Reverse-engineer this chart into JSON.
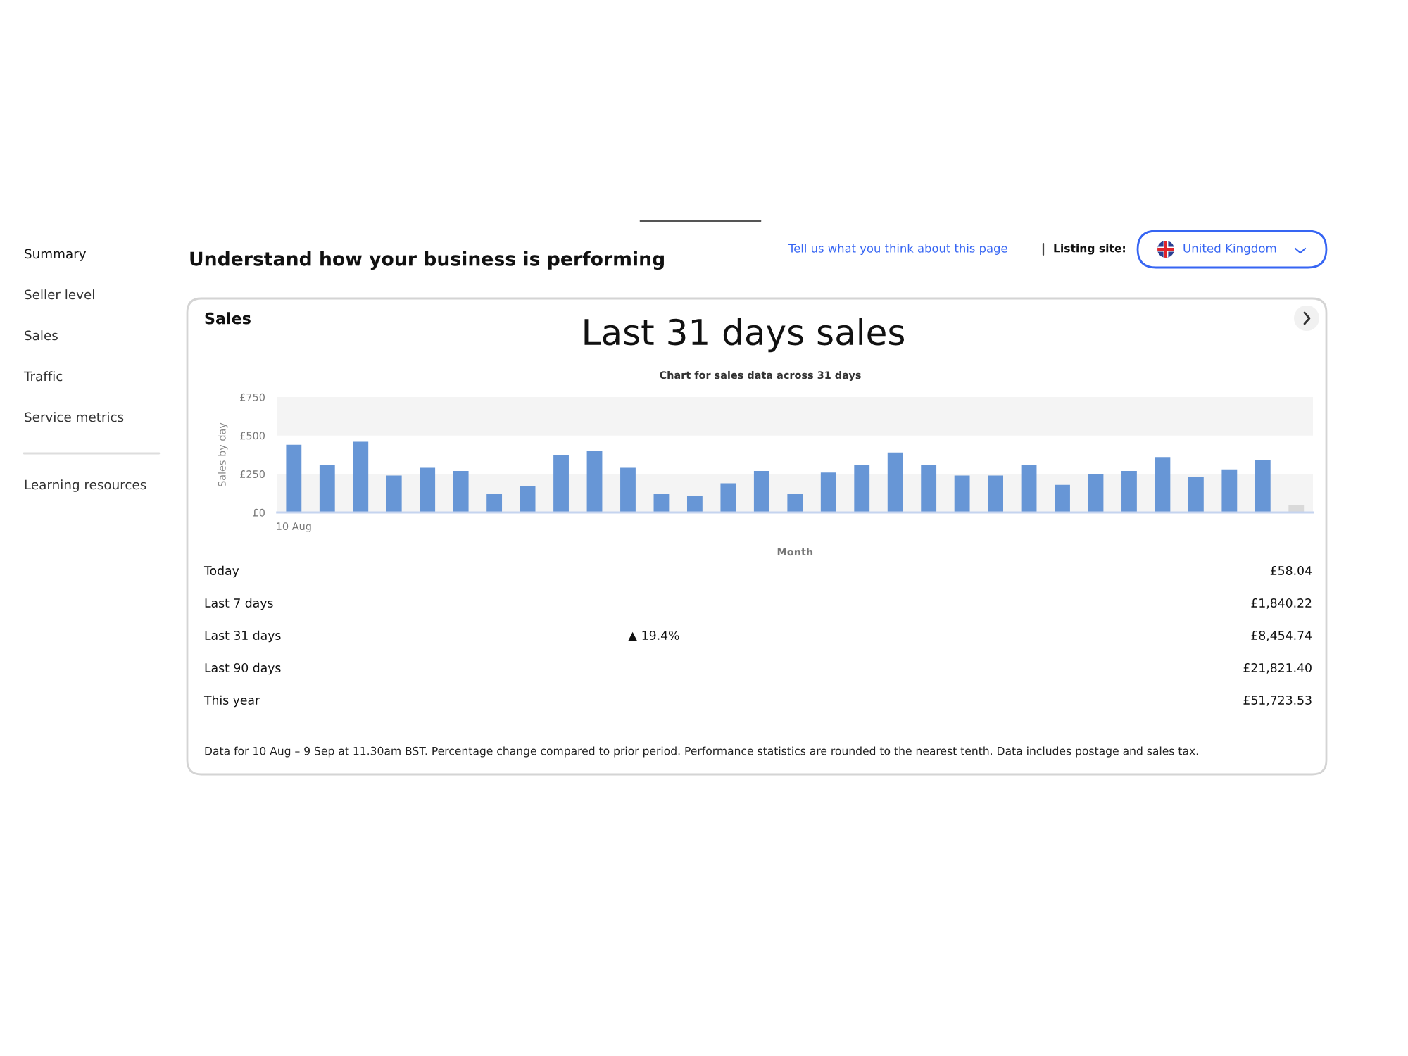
{
  "chart_data": {
    "type": "bar",
    "title": "Last 31 days sales",
    "subtitle": "Chart for sales data across 31 days",
    "xlabel": "Month",
    "ylabel": "Sales by day",
    "categories": [
      "10 Aug",
      null,
      null,
      null,
      null,
      null,
      null,
      null,
      null,
      null,
      null,
      null,
      null,
      null,
      null,
      null,
      null,
      null,
      null,
      null,
      null,
      null,
      null,
      null,
      null,
      null,
      null,
      null,
      null,
      null,
      null
    ],
    "values": [
      440,
      310,
      460,
      240,
      290,
      270,
      120,
      170,
      370,
      400,
      290,
      120,
      110,
      190,
      270,
      120,
      260,
      310,
      390,
      310,
      240,
      240,
      310,
      180,
      250,
      270,
      360,
      230,
      280,
      340,
      50
    ],
    "colors": [
      "#6796d6",
      "#6796d6",
      "#6796d6",
      "#6796d6",
      "#6796d6",
      "#6796d6",
      "#6796d6",
      "#6796d6",
      "#6796d6",
      "#6796d6",
      "#6796d6",
      "#6796d6",
      "#6796d6",
      "#6796d6",
      "#6796d6",
      "#6796d6",
      "#6796d6",
      "#6796d6",
      "#6796d6",
      "#6796d6",
      "#6796d6",
      "#6796d6",
      "#6796d6",
      "#6796d6",
      "#6796d6",
      "#6796d6",
      "#6796d6",
      "#6796d6",
      "#6796d6",
      "#6796d6",
      "#d9d9d9"
    ],
    "ylim": [
      0,
      750
    ],
    "yticks": [
      {
        "value": 0,
        "label": "£0"
      },
      {
        "value": 250,
        "label": "£250"
      },
      {
        "value": 500,
        "label": "£500"
      },
      {
        "value": 750,
        "label": "£750"
      }
    ],
    "bands": [
      {
        "axis": "y",
        "from": 0,
        "to": 250,
        "color": "#f4f4f4"
      },
      {
        "axis": "y",
        "from": 500,
        "to": 750,
        "color": "#f4f4f4"
      }
    ],
    "annotations": [
      "Summary",
      "Seller level",
      "Sales",
      "Traffic",
      "Service metrics",
      "Learning resources",
      "Understand how your business is performing",
      "Tell us what you think about this page",
      "Listing site:",
      "United Kingdom",
      "Sales",
      "Today",
      "£58.04",
      "Last 7 days",
      "£1,840.22",
      "Last 31 days",
      "▲ 19.4%",
      "£8,454.74",
      "Last 90 days",
      "£21,821.40",
      "This year",
      "£51,723.53",
      "Data for 10 Aug – 9 Sep at 11.30am BST. Percentage change compared to prior period. Performance statistics are rounded to the nearest tenth. Data includes postage and sales tax."
    ]
  }
}
